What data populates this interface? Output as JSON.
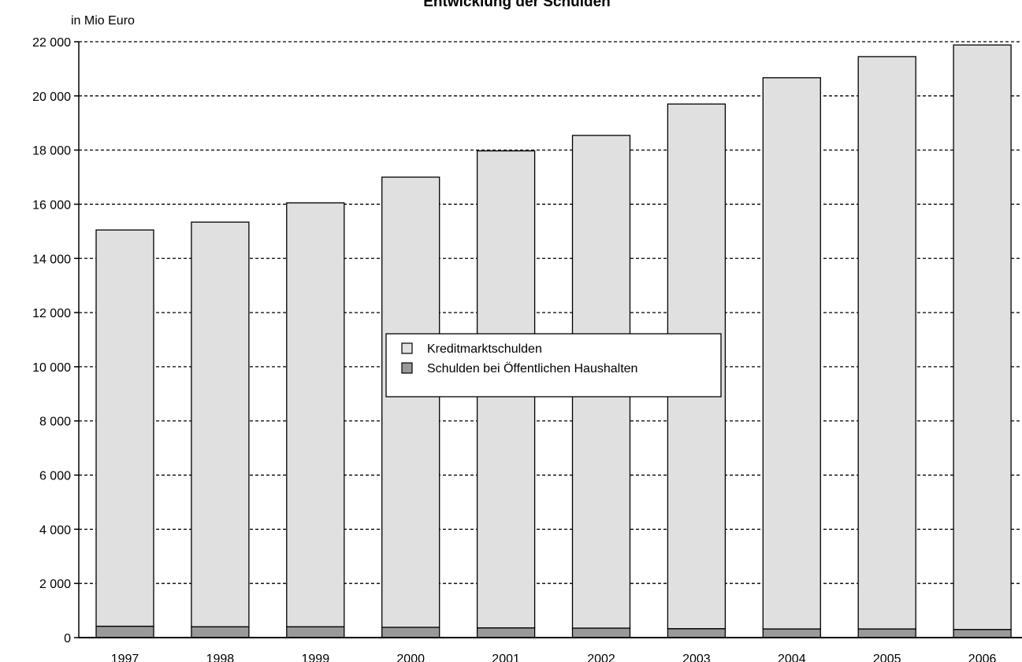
{
  "chart_data": {
    "type": "bar",
    "stacked": true,
    "title": "Entwicklung der Schulden",
    "ylabel": "in Mio Euro",
    "xlabel": "",
    "ylim": [
      0,
      22000
    ],
    "yticks": [
      0,
      2000,
      4000,
      6000,
      8000,
      10000,
      12000,
      14000,
      16000,
      18000,
      20000,
      22000
    ],
    "ytick_labels": [
      "0",
      "2 000",
      "4 000",
      "6 000",
      "8 000",
      "10 000",
      "12 000",
      "14 000",
      "16 000",
      "18 000",
      "20 000",
      "22 000"
    ],
    "grid": "horizontal-dashed",
    "legend_position": "center",
    "categories": [
      "1997",
      "1998",
      "1999",
      "2000",
      "2001",
      "2002",
      "2003",
      "2004",
      "2005",
      "2006"
    ],
    "series": [
      {
        "name": "Schulden bei Öffentlichen Haushalten",
        "color": "#999999",
        "values": [
          420,
          400,
          400,
          380,
          360,
          350,
          330,
          320,
          320,
          300
        ]
      },
      {
        "name": "Kreditmarktschulden",
        "color": "#e0e0e0",
        "values": [
          14630,
          14940,
          15650,
          16620,
          17610,
          18190,
          19370,
          20350,
          21130,
          21580
        ]
      }
    ],
    "legend_order": [
      "Kreditmarktschulden",
      "Schulden bei Öffentlichen Haushalten"
    ]
  }
}
